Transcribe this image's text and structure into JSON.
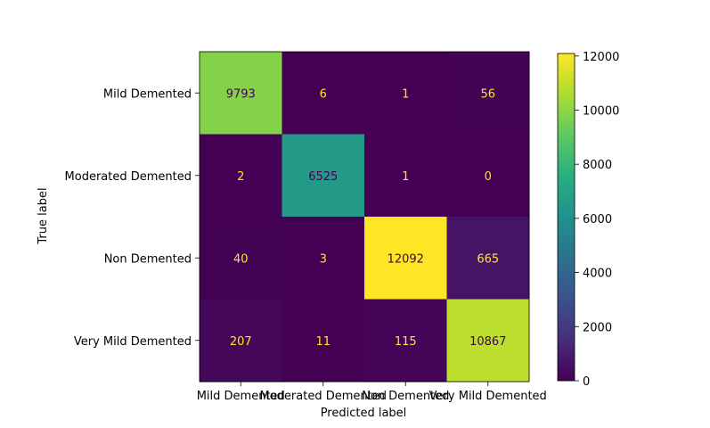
{
  "chart_data": {
    "type": "heatmap",
    "title": "",
    "xlabel": "Predicted label",
    "ylabel": "True label",
    "x_categories": [
      "Mild Demented",
      "Moderated Demented",
      "Non Demented",
      "Very Mild Demented"
    ],
    "y_categories": [
      "Mild Demented",
      "Moderated Demented",
      "Non Demented",
      "Very Mild Demented"
    ],
    "values": [
      [
        9793,
        6,
        1,
        56
      ],
      [
        2,
        6525,
        1,
        0
      ],
      [
        40,
        3,
        12092,
        665
      ],
      [
        207,
        11,
        115,
        10867
      ]
    ],
    "colormap": "viridis",
    "colorbar": {
      "vmin": 0,
      "vmax": 12092,
      "ticks": [
        0,
        2000,
        4000,
        6000,
        8000,
        10000,
        12000
      ]
    },
    "annotation_colors": {
      "on_dark": "#fde725",
      "on_light": "#440154"
    }
  }
}
